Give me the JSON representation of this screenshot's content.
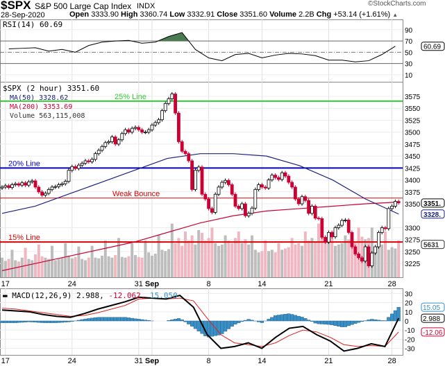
{
  "header": {
    "symbol": "$SPX",
    "name": "S&P 500 Large Cap Index",
    "exchange": "INDX",
    "watermark": "©StockCharts.com",
    "date": "28-Sep-2020",
    "open_label": "Open",
    "open": "3333.90",
    "high_label": "High",
    "high": "3360.74",
    "low_label": "Low",
    "low": "3332.91",
    "close_label": "Close",
    "close": "3351.60",
    "volume_label": "Volume",
    "volume": "2.2B",
    "chg_label": "Chg",
    "chg": "+53.14 (+1.61%)"
  },
  "colors": {
    "up": "#000000",
    "down": "#cc0033",
    "ma50": "#1a237e",
    "ma200": "#cc0033",
    "rsi_fill": "#4a7a50",
    "macd_hist": "#3a8fc4",
    "signal": "#e02020",
    "green_line": "#33cc33",
    "blue_line": "#0000cc",
    "red_line": "#dd0000"
  },
  "chart_data": [
    {
      "type": "line",
      "title": "RSI(14) 60.69",
      "legend": "RSI(14) 60.69",
      "ylim": [
        0,
        100
      ],
      "yticks": [
        90,
        70,
        50,
        30,
        10
      ],
      "last_label": "60.69",
      "values": [
        56,
        57,
        58,
        52,
        55,
        50,
        62,
        68,
        70,
        71,
        66,
        68,
        78,
        85,
        55,
        40,
        35,
        46,
        48,
        40,
        45,
        48,
        47,
        44,
        36,
        36,
        33,
        35,
        46,
        60.69
      ]
    },
    {
      "type": "candlestick",
      "title": "$SPX (2 hour) 3351.60",
      "interval": "2 hour",
      "ylim": [
        3210,
        3600
      ],
      "yticks": [
        3575,
        3550,
        3525,
        3500,
        3475,
        3450,
        3425,
        3400,
        3375,
        3350,
        3300,
        3275,
        3250,
        3225
      ],
      "legend": {
        "price": "$SPX (2 hour) 3351.60",
        "ma50": "MA(50) 3328.62",
        "ma200": "MA(200) 3353.69",
        "volume": "Volume 563,115,008"
      },
      "last_labels": {
        "close": "3351.",
        "ma50": "3328.",
        "volume": "5631"
      },
      "first_open": 3383,
      "closes": [
        3385,
        3388,
        3384,
        3390,
        3392,
        3389,
        3394,
        3389,
        3396,
        3398,
        3385,
        3375,
        3368,
        3372,
        3380,
        3385,
        3386,
        3390,
        3392,
        3397,
        3420,
        3428,
        3424,
        3431,
        3435,
        3440,
        3438,
        3443,
        3455,
        3462,
        3470,
        3478,
        3480,
        3490,
        3475,
        3484,
        3497,
        3505,
        3500,
        3508,
        3510,
        3505,
        3500,
        3500,
        3505,
        3515,
        3520,
        3526,
        3545,
        3560,
        3570,
        3580,
        3540,
        3480,
        3460,
        3455,
        3440,
        3380,
        3420,
        3427,
        3370,
        3360,
        3340,
        3332,
        3370,
        3385,
        3395,
        3399,
        3390,
        3370,
        3345,
        3340,
        3350,
        3325,
        3330,
        3341,
        3380,
        3390,
        3385,
        3383,
        3400,
        3410,
        3405,
        3401,
        3415,
        3408,
        3395,
        3385,
        3360,
        3350,
        3365,
        3357,
        3330,
        3345,
        3320,
        3319,
        3280,
        3270,
        3290,
        3281,
        3300,
        3305,
        3315,
        3316,
        3290,
        3260,
        3245,
        3237,
        3230,
        3260,
        3220,
        3247,
        3260,
        3290,
        3300,
        3298,
        3340,
        3345,
        3355,
        3352
      ],
      "volume_millions": [
        300,
        250,
        280,
        420,
        260,
        240,
        300,
        450,
        280,
        260,
        350,
        500,
        320,
        300,
        280,
        480,
        260,
        280,
        300,
        520,
        330,
        290,
        310,
        470,
        280,
        260,
        300,
        480,
        300,
        290,
        330,
        560,
        320,
        300,
        340,
        600,
        310,
        300,
        320,
        520,
        340,
        310,
        300,
        560,
        380,
        330,
        360,
        650,
        420,
        400,
        430,
        820,
        520,
        600,
        480,
        700,
        560,
        640,
        500,
        720,
        680,
        560,
        600,
        760,
        520,
        480,
        500,
        640,
        560,
        520,
        600,
        700,
        520,
        580,
        500,
        640,
        420,
        380,
        400,
        560,
        400,
        420,
        380,
        520,
        420,
        440,
        460,
        600,
        500,
        520,
        480,
        700,
        560,
        600,
        540,
        820,
        620,
        560,
        600,
        700,
        480,
        500,
        520,
        640,
        580,
        600,
        540,
        760,
        620,
        580,
        600,
        760,
        460,
        480,
        500,
        700,
        420,
        460,
        440,
        563
      ],
      "ma50": [
        3330,
        3345,
        3370,
        3395,
        3420,
        3445,
        3455,
        3455,
        3450,
        3430,
        3400,
        3360,
        3328.62
      ],
      "ma200": [
        3210,
        3225,
        3240,
        3255,
        3270,
        3290,
        3310,
        3325,
        3335,
        3340,
        3345,
        3350,
        3353.69
      ],
      "annotations": [
        {
          "label": "25% Line",
          "value": 3565,
          "color": "green"
        },
        {
          "label": "20% Line",
          "value": 3425,
          "color": "blue"
        },
        {
          "label": "Weak Bounce",
          "value": 3362,
          "color": "red"
        },
        {
          "label": "15% Line",
          "value": 3270,
          "color": "red"
        }
      ]
    },
    {
      "type": "line+bar",
      "title": "MACD(12,26,9) 2.988, -12.062, 15.050",
      "legend": {
        "name": "MACD(12,26,9)",
        "macd": "2.988,",
        "signal": "-12.062,",
        "hist": "15.050"
      },
      "ylim": [
        -36,
        34
      ],
      "yticks": [
        30,
        20,
        10,
        0,
        -10,
        -20,
        -30
      ],
      "last_labels": {
        "hist": "15.05",
        "macd": "2.988",
        "signal": "-12.06"
      },
      "macd": [
        12,
        11,
        10,
        7,
        5,
        4,
        8,
        13,
        17,
        21,
        26,
        25,
        24,
        28,
        15,
        -15,
        -30,
        -28,
        -24,
        -30,
        -18,
        -8,
        -6,
        -15,
        -22,
        -33,
        -30,
        -25,
        -28,
        2.988
      ],
      "signal": [
        14,
        13,
        11,
        9,
        7,
        5,
        6,
        9,
        13,
        17,
        24,
        25,
        24,
        25,
        22,
        3,
        -15,
        -24,
        -26,
        -28,
        -24,
        -16,
        -10,
        -12,
        -18,
        -26,
        -28,
        -27,
        -28,
        -12.062
      ]
    }
  ],
  "xaxis": {
    "ticks": [
      {
        "label": "17",
        "bar": 1
      },
      {
        "label": "24",
        "bar": 21
      },
      {
        "label": "31",
        "bar": 41
      },
      {
        "label": "Sep",
        "bar": 45,
        "bold": true
      },
      {
        "label": "8",
        "bar": 62
      },
      {
        "label": "14",
        "bar": 78
      },
      {
        "label": "21",
        "bar": 98
      },
      {
        "label": "28",
        "bar": 117
      }
    ]
  }
}
